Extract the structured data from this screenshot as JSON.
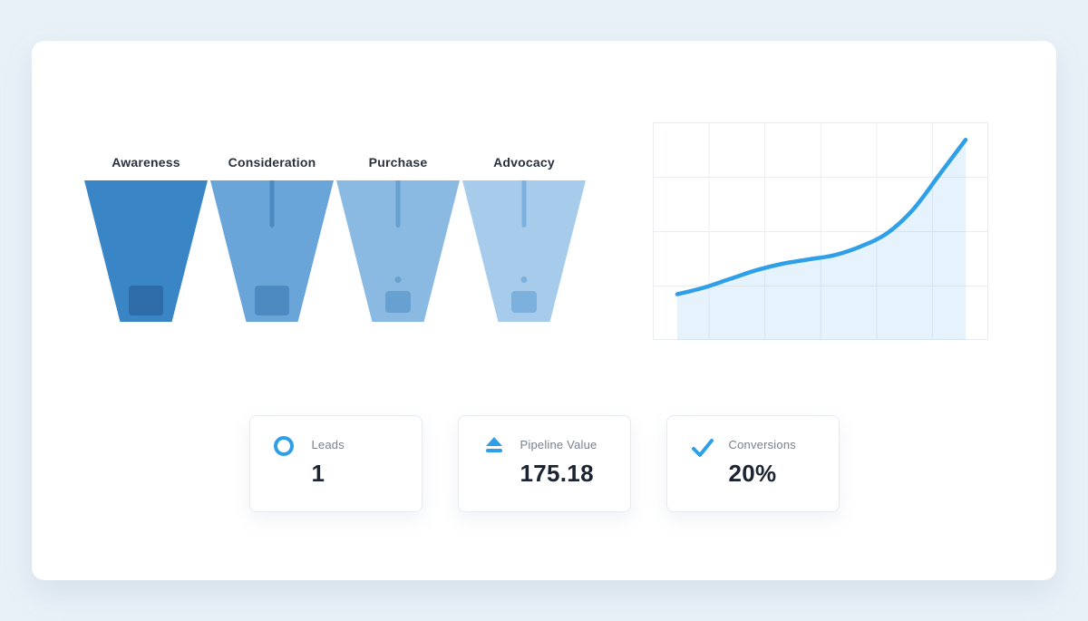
{
  "page": {
    "background": "#e9f1f8",
    "card_background": "#ffffff"
  },
  "theme": {
    "accent": "#2f9fe8",
    "label_text": "#28323e",
    "muted_text": "#78828f",
    "value_text": "#1b2430",
    "grid_color": "#e9edf3",
    "card_border": "#e7ebf1"
  },
  "funnel": {
    "stages": [
      {
        "label": "Awareness",
        "color": "#3a85c6",
        "marker_color": "#2d6ca8",
        "line": false,
        "dot": false
      },
      {
        "label": "Consideration",
        "color": "#69a5d8",
        "marker_color": "#4d8ac2",
        "line": true,
        "dot": false
      },
      {
        "label": "Purchase",
        "color": "#8abae2",
        "marker_color": "#66a1d2",
        "line": true,
        "dot": true
      },
      {
        "label": "Advocacy",
        "color": "#a7cceb",
        "marker_color": "#7db1dd",
        "line": true,
        "dot": true
      }
    ]
  },
  "chart_data": [
    {
      "type": "funnel",
      "categories": [
        "Awareness",
        "Consideration",
        "Purchase",
        "Advocacy"
      ],
      "colors": [
        "#3a85c6",
        "#69a5d8",
        "#8abae2",
        "#a7cceb"
      ],
      "note": "equal-width trapezoid stages, shade lightens left to right"
    },
    {
      "type": "line",
      "x": [
        0,
        1,
        2,
        3,
        4,
        5,
        6,
        7,
        8,
        9,
        10,
        11
      ],
      "values": [
        21,
        24,
        28,
        32,
        35,
        37,
        39,
        43,
        49,
        60,
        76,
        92
      ],
      "ylim": [
        0,
        100
      ],
      "line_color": "#2f9fe8",
      "area_opacity": 0.12,
      "grid": true,
      "legend": false,
      "title": "",
      "xlabel": "",
      "ylabel": ""
    }
  ],
  "stats": [
    {
      "icon": "ring-icon",
      "label": "Leads",
      "value": "1"
    },
    {
      "icon": "eject-icon",
      "label": "Pipeline Value",
      "value": "175.18"
    },
    {
      "icon": "check-icon",
      "label": "Conversions",
      "value": "20%"
    }
  ]
}
